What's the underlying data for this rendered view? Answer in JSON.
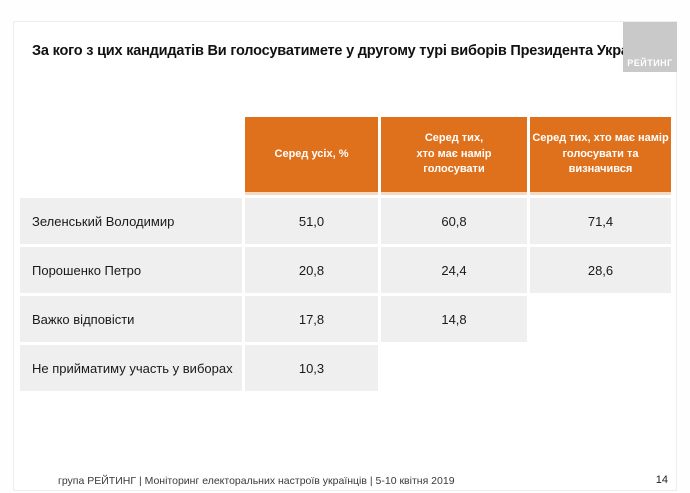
{
  "slide": {
    "title": "За кого з цих кандидатів Ви голосуватимете у другому турі виборів Президента України?",
    "logo_text": "РЕЙТИНГ",
    "footer": "група РЕЙТИНГ | Моніторинг електоральних настроїв українців  |  5-10 квітня 2019",
    "page_number": "14"
  },
  "colors": {
    "accent_orange": "#E0711C",
    "header_border": "#F5D9C0",
    "cell_gray": "#EFEFEF",
    "logo_gray": "#C9C9C9"
  },
  "chart_data": {
    "type": "table",
    "title": "За кого з цих кандидатів Ви голосуватимете у другому турі виборів Президента України?",
    "columns": [
      "Серед усіх, %",
      "Серед тих,\nхто має намір\nголосувати",
      "Серед тих, хто має намір\nголосувати та\nвизначився"
    ],
    "rows": [
      {
        "label": "Зеленський Володимир",
        "values": [
          "51,0",
          "60,8",
          "71,4"
        ]
      },
      {
        "label": "Порошенко Петро",
        "values": [
          "20,8",
          "24,4",
          "28,6"
        ]
      },
      {
        "label": "Важко відповісти",
        "values": [
          "17,8",
          "14,8",
          null
        ]
      },
      {
        "label": "Не прийматиму участь у виборах",
        "values": [
          "10,3",
          null,
          null
        ]
      }
    ],
    "source_note": "група РЕЙТИНГ | Моніторинг електоральних настроїв українців | 5-10 квітня 2019"
  }
}
